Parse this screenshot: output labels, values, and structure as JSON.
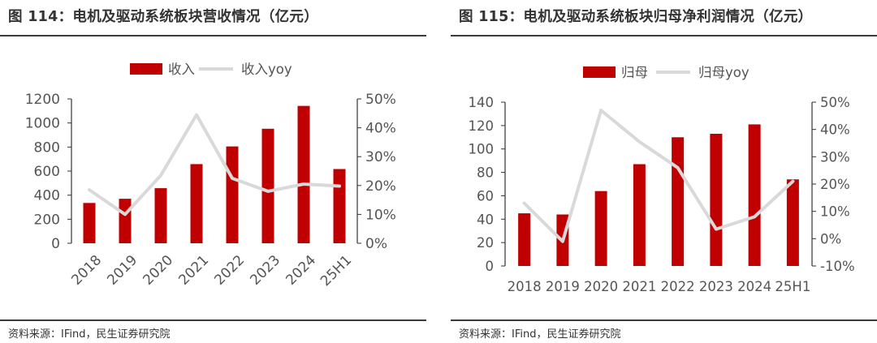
{
  "colors": {
    "bar": "#c00000",
    "line": "#d9d9d9",
    "axis": "#333333",
    "text": "#555555"
  },
  "chart_data": [
    {
      "type": "bar",
      "title": "图 114：电机及驱动系统板块营收情况（亿元）",
      "source": "资料来源：IFind，民生证券研究院",
      "categories": [
        "2018",
        "2019",
        "2020",
        "2021",
        "2022",
        "2023",
        "2024",
        "25H1"
      ],
      "series": [
        {
          "name": "收入",
          "kind": "bar",
          "axis": "left",
          "values": [
            335,
            370,
            458,
            658,
            805,
            952,
            1142,
            617
          ]
        },
        {
          "name": "收入yoy",
          "kind": "line",
          "axis": "right",
          "values": [
            18.5,
            10.0,
            23.5,
            44.5,
            22.5,
            18.0,
            20.5,
            19.8
          ]
        }
      ],
      "yleft": {
        "min": 0,
        "max": 1200,
        "ticks": [
          "0",
          "200",
          "400",
          "600",
          "800",
          "1000",
          "1200"
        ]
      },
      "yright": {
        "min": 0,
        "max": 50,
        "ticks": [
          "0%",
          "10%",
          "20%",
          "30%",
          "40%",
          "50%"
        ]
      },
      "legend": "top-center",
      "xlabel_rotation": "rotated"
    },
    {
      "type": "bar",
      "title": "图 115：电机及驱动系统板块归母净利润情况（亿元）",
      "source": "资料来源：IFind，民生证券研究院",
      "categories": [
        "2018",
        "2019",
        "2020",
        "2021",
        "2022",
        "2023",
        "2024",
        "25H1"
      ],
      "series": [
        {
          "name": "归母",
          "kind": "bar",
          "axis": "left",
          "values": [
            45,
            44,
            64,
            87,
            110,
            113,
            121,
            74
          ]
        },
        {
          "name": "归母yoy",
          "kind": "line",
          "axis": "right",
          "values": [
            13.0,
            -1.0,
            47.0,
            35.5,
            26.0,
            3.5,
            8.0,
            21.0
          ]
        }
      ],
      "yleft": {
        "min": 0,
        "max": 140,
        "ticks": [
          "0",
          "20",
          "40",
          "60",
          "80",
          "100",
          "120",
          "140"
        ]
      },
      "yright": {
        "min": -10,
        "max": 50,
        "ticks": [
          "-10%",
          "0%",
          "10%",
          "20%",
          "30%",
          "40%",
          "50%"
        ]
      },
      "legend": "top-center",
      "xlabel_rotation": "horizontal"
    }
  ]
}
